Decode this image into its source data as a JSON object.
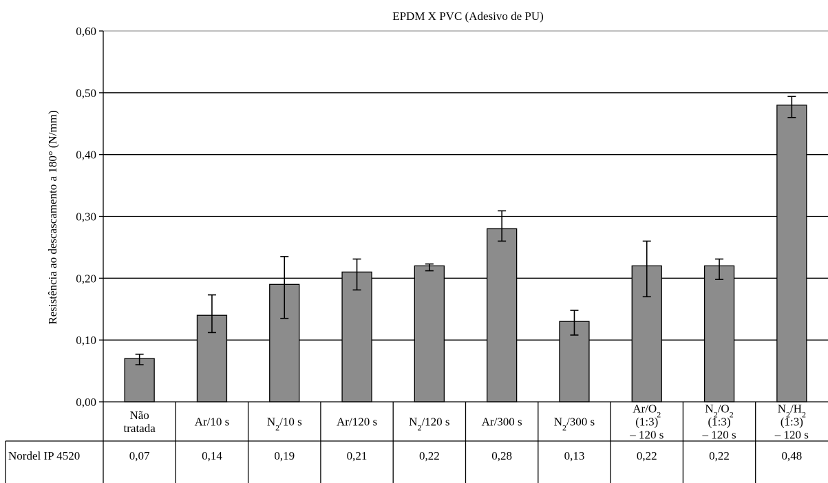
{
  "chart_data": {
    "type": "bar",
    "title": "EPDM X PVC (Adesivo de PU)",
    "xlabel": "",
    "ylabel": "Resistência ao descascamento a 180° (N/mm)",
    "ylim": [
      0,
      0.6
    ],
    "yticks": [
      "0,00",
      "0,10",
      "0,20",
      "0,30",
      "0,40",
      "0,50",
      "0,60"
    ],
    "grid": true,
    "bar_color": "#8c8c8c",
    "categories": [
      [
        "Não",
        "tratada"
      ],
      [
        "Ar/10 s"
      ],
      [
        "N|2|/10 s"
      ],
      [
        "Ar/120 s"
      ],
      [
        "N|2|/120 s"
      ],
      [
        "Ar/300 s"
      ],
      [
        "N|2|/300 s"
      ],
      [
        "Ar/O|2|",
        "(1:3)",
        "– 120 s"
      ],
      [
        "N|2|/O|2|",
        "(1:3)",
        "– 120 s"
      ],
      [
        "N|2|/H|2|",
        "(1:3)",
        "– 120 s"
      ]
    ],
    "series": [
      {
        "name": "Nordel IP 4520",
        "values": [
          0.07,
          0.14,
          0.19,
          0.21,
          0.22,
          0.28,
          0.13,
          0.22,
          0.22,
          0.48
        ],
        "labels": [
          "0,07",
          "0,14",
          "0,19",
          "0,21",
          "0,22",
          "0,28",
          "0,13",
          "0,22",
          "0,22",
          "0,48"
        ],
        "error_low": [
          0.06,
          0.112,
          0.135,
          0.181,
          0.212,
          0.26,
          0.108,
          0.17,
          0.198,
          0.46
        ],
        "error_high": [
          0.077,
          0.173,
          0.235,
          0.231,
          0.223,
          0.309,
          0.148,
          0.26,
          0.231,
          0.494
        ]
      }
    ]
  }
}
